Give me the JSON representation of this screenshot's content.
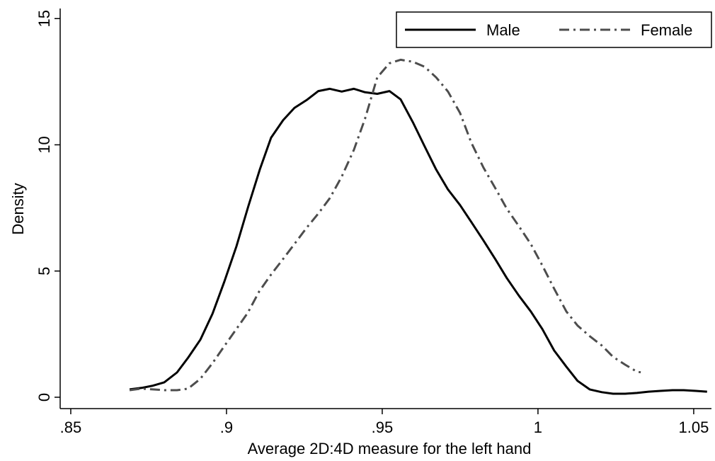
{
  "chart_data": {
    "type": "line",
    "xlabel": "Average 2D:4D measure for the left hand",
    "ylabel": "Density",
    "xlim": [
      0.8466,
      1.0557
    ],
    "ylim": [
      -0.45,
      15.4
    ],
    "xticks": [
      {
        "value": 0.85,
        "label": ".85"
      },
      {
        "value": 0.9,
        "label": ".9"
      },
      {
        "value": 0.95,
        "label": ".95"
      },
      1,
      1.05
    ],
    "yticks": [
      0,
      5,
      10,
      15
    ],
    "grid": false,
    "legend": "top-right",
    "series": [
      {
        "name": "Male",
        "color": "#000000",
        "dash": "solid",
        "x": [
          0.8689,
          0.8727,
          0.8761,
          0.88,
          0.8841,
          0.8877,
          0.8916,
          0.8955,
          0.8993,
          0.9032,
          0.907,
          0.9107,
          0.9143,
          0.9182,
          0.9218,
          0.9257,
          0.9295,
          0.9332,
          0.937,
          0.9409,
          0.9445,
          0.9484,
          0.9523,
          0.9559,
          0.9598,
          0.9636,
          0.9673,
          0.9711,
          0.975,
          0.9786,
          0.9825,
          0.9864,
          0.99,
          0.9939,
          0.9977,
          1.0014,
          1.0052,
          1.0091,
          1.0127,
          1.0166,
          1.0205,
          1.0241,
          1.028,
          1.0318,
          1.0355,
          1.0393,
          1.0432,
          1.0468,
          1.0507,
          1.0543
        ],
        "values": [
          0.31,
          0.37,
          0.45,
          0.59,
          0.98,
          1.57,
          2.28,
          3.31,
          4.58,
          5.98,
          7.56,
          9.02,
          10.28,
          10.98,
          11.46,
          11.77,
          12.13,
          12.22,
          12.11,
          12.22,
          12.08,
          12.02,
          12.13,
          11.8,
          10.9,
          9.94,
          9.02,
          8.23,
          7.61,
          6.94,
          6.21,
          5.45,
          4.72,
          4.02,
          3.4,
          2.7,
          1.85,
          1.21,
          0.65,
          0.31,
          0.2,
          0.14,
          0.14,
          0.17,
          0.22,
          0.25,
          0.28,
          0.28,
          0.25,
          0.22
        ]
      },
      {
        "name": "Female",
        "color": "#4d4d4d",
        "dash": "dash-dot",
        "x": [
          0.8689,
          0.8727,
          0.8764,
          0.8802,
          0.8841,
          0.8877,
          0.8916,
          0.8955,
          0.8991,
          0.903,
          0.9068,
          0.9105,
          0.9143,
          0.9182,
          0.9218,
          0.9257,
          0.9295,
          0.9332,
          0.937,
          0.9409,
          0.9445,
          0.9484,
          0.9523,
          0.9559,
          0.9598,
          0.9636,
          0.9673,
          0.9711,
          0.975,
          0.9786,
          0.9825,
          0.9864,
          0.99,
          0.9939,
          0.9977,
          1.0014,
          1.0052,
          1.0091,
          1.0127,
          1.0166,
          1.0205,
          1.0241,
          1.028,
          1.0318,
          1.033
        ],
        "values": [
          0.28,
          0.34,
          0.31,
          0.28,
          0.28,
          0.34,
          0.73,
          1.35,
          1.99,
          2.67,
          3.34,
          4.19,
          4.86,
          5.48,
          6.07,
          6.71,
          7.28,
          7.89,
          8.74,
          9.8,
          11.04,
          12.67,
          13.23,
          13.37,
          13.29,
          13.09,
          12.67,
          12.11,
          11.26,
          10.08,
          9.1,
          8.26,
          7.47,
          6.77,
          6.07,
          5.22,
          4.3,
          3.4,
          2.84,
          2.42,
          2.05,
          1.6,
          1.29,
          1.01,
          0.99
        ]
      }
    ]
  }
}
